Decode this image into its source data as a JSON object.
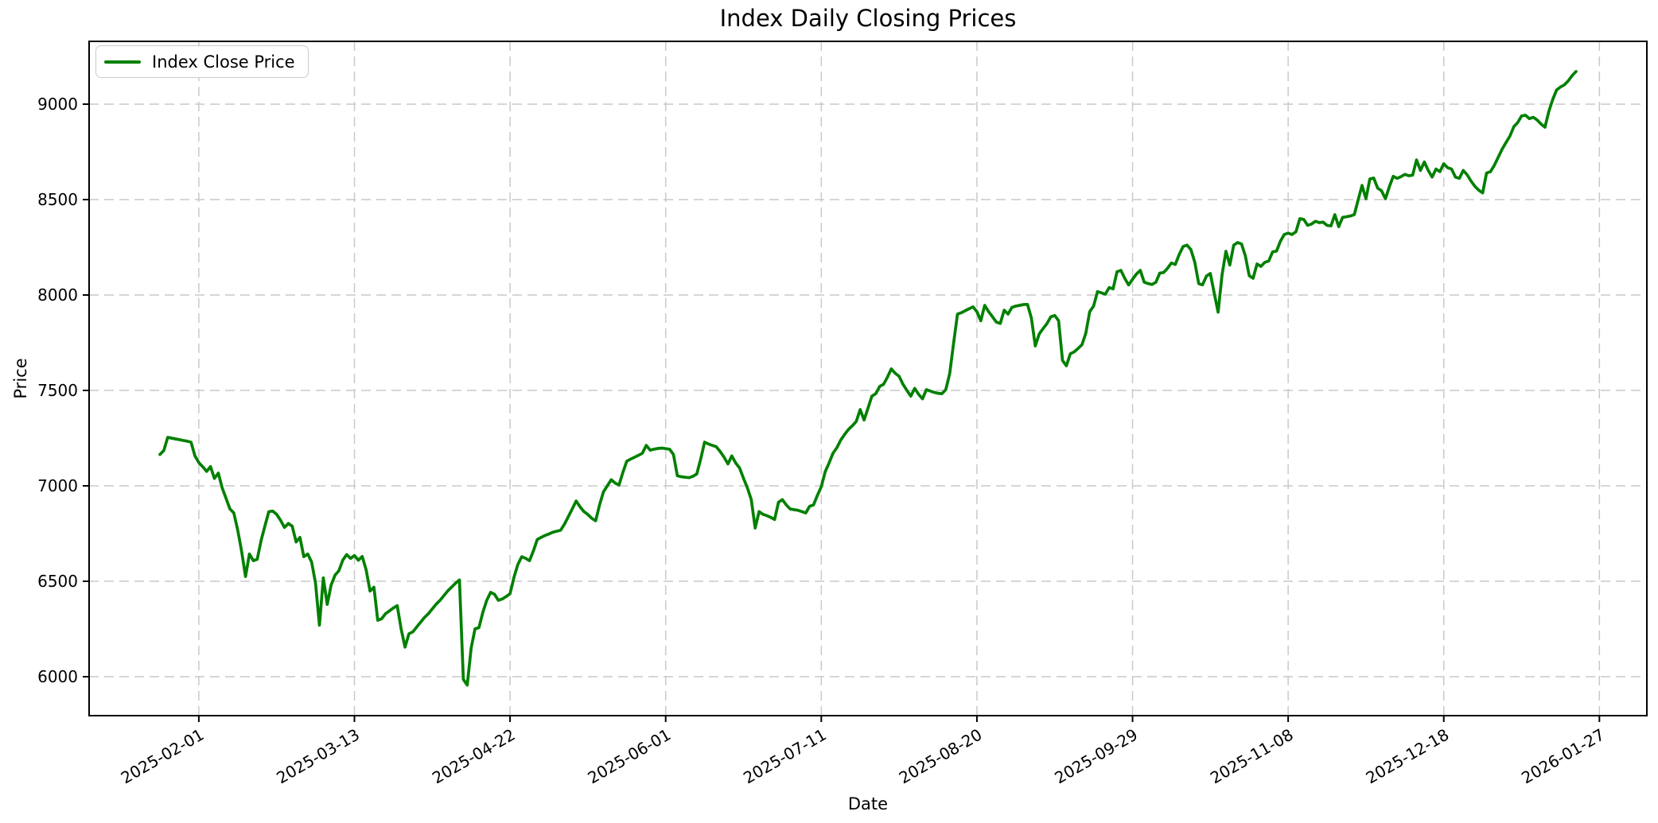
{
  "figure": {
    "title": "Index Daily Closing Prices"
  },
  "axes": {
    "xlabel": "Date",
    "ylabel": "Price"
  },
  "legend": {
    "items": [
      {
        "label": "Index Close Price",
        "color": "#008000"
      }
    ]
  },
  "colors": {
    "line": "#008000",
    "grid": "#c9c9c9",
    "spine": "#000000",
    "text": "#000000",
    "legend_border": "#cccccc"
  },
  "chart_data": {
    "type": "line",
    "title": "Index Daily Closing Prices",
    "xlabel": "Date",
    "ylabel": "Price",
    "grid": true,
    "grid_style": "dashed",
    "legend_position": "upper left",
    "frequency": "daily",
    "start_date": "2025-01-22",
    "end_date": "2026-01-21",
    "x_tick_labels": [
      "2025-02-01",
      "2025-03-13",
      "2025-04-22",
      "2025-06-01",
      "2025-07-11",
      "2025-08-20",
      "2025-09-29",
      "2025-11-08",
      "2025-12-18",
      "2026-01-27"
    ],
    "x_tick_indices": [
      10,
      50,
      90,
      130,
      170,
      210,
      250,
      290,
      330,
      370
    ],
    "xlim_indices": [
      -18.2,
      382.2
    ],
    "y_ticks": [
      6000,
      6500,
      7000,
      7500,
      8000,
      8500,
      9000
    ],
    "ylim": [
      5796,
      9329
    ],
    "series": [
      {
        "name": "Index Close Price",
        "color": "#008000",
        "values": [
          7164,
          7185,
          7254,
          7250,
          7246,
          7242,
          7238,
          7234,
          7229,
          7157,
          7122,
          7100,
          7076,
          7101,
          7039,
          7067,
          6990,
          6935,
          6879,
          6858,
          6768,
          6657,
          6525,
          6643,
          6608,
          6615,
          6712,
          6790,
          6865,
          6868,
          6851,
          6820,
          6782,
          6803,
          6789,
          6706,
          6730,
          6629,
          6643,
          6601,
          6490,
          6270,
          6518,
          6379,
          6480,
          6532,
          6555,
          6610,
          6640,
          6620,
          6635,
          6610,
          6630,
          6560,
          6449,
          6469,
          6296,
          6304,
          6330,
          6345,
          6360,
          6372,
          6250,
          6155,
          6225,
          6235,
          6260,
          6285,
          6310,
          6330,
          6355,
          6380,
          6400,
          6425,
          6450,
          6470,
          6490,
          6507,
          5986,
          5956,
          6150,
          6251,
          6257,
          6337,
          6400,
          6442,
          6432,
          6400,
          6407,
          6420,
          6435,
          6520,
          6588,
          6629,
          6620,
          6608,
          6660,
          6719,
          6730,
          6740,
          6748,
          6757,
          6762,
          6768,
          6800,
          6840,
          6880,
          6921,
          6890,
          6865,
          6850,
          6830,
          6817,
          6900,
          6969,
          7000,
          7032,
          7015,
          7004,
          7070,
          7129,
          7140,
          7150,
          7160,
          7171,
          7212,
          7187,
          7192,
          7196,
          7198,
          7195,
          7192,
          7164,
          7053,
          7048,
          7045,
          7043,
          7050,
          7062,
          7140,
          7229,
          7219,
          7212,
          7205,
          7180,
          7150,
          7115,
          7157,
          7120,
          7094,
          7040,
          6990,
          6928,
          6779,
          6865,
          6851,
          6844,
          6835,
          6824,
          6914,
          6928,
          6900,
          6879,
          6875,
          6872,
          6865,
          6858,
          6893,
          6900,
          6950,
          6995,
          7074,
          7120,
          7171,
          7200,
          7240,
          7270,
          7296,
          7315,
          7338,
          7400,
          7345,
          7407,
          7470,
          7483,
          7521,
          7532,
          7570,
          7613,
          7590,
          7574,
          7532,
          7500,
          7470,
          7511,
          7480,
          7456,
          7504,
          7497,
          7490,
          7485,
          7483,
          7504,
          7588,
          7747,
          7900,
          7907,
          7918,
          7928,
          7938,
          7913,
          7865,
          7946,
          7913,
          7886,
          7858,
          7851,
          7921,
          7900,
          7935,
          7942,
          7946,
          7950,
          7951,
          7879,
          7733,
          7796,
          7824,
          7850,
          7886,
          7893,
          7865,
          7657,
          7629,
          7692,
          7702,
          7720,
          7740,
          7800,
          7913,
          7942,
          8018,
          8011,
          8004,
          8039,
          8032,
          8122,
          8129,
          8088,
          8053,
          8082,
          8110,
          8129,
          8067,
          8060,
          8055,
          8067,
          8115,
          8118,
          8140,
          8168,
          8160,
          8213,
          8254,
          8261,
          8238,
          8171,
          8060,
          8053,
          8099,
          8113,
          8010,
          7910,
          8104,
          8229,
          8157,
          8261,
          8275,
          8268,
          8205,
          8101,
          8088,
          8163,
          8150,
          8171,
          8178,
          8226,
          8230,
          8282,
          8317,
          8324,
          8317,
          8331,
          8400,
          8396,
          8365,
          8372,
          8386,
          8379,
          8382,
          8365,
          8362,
          8421,
          8358,
          8407,
          8410,
          8414,
          8421,
          8500,
          8574,
          8504,
          8608,
          8613,
          8560,
          8546,
          8504,
          8567,
          8622,
          8611,
          8620,
          8632,
          8625,
          8628,
          8708,
          8653,
          8697,
          8653,
          8618,
          8660,
          8646,
          8688,
          8667,
          8660,
          8618,
          8611,
          8653,
          8630,
          8597,
          8569,
          8549,
          8535,
          8639,
          8646,
          8680,
          8722,
          8764,
          8799,
          8833,
          8882,
          8903,
          8938,
          8942,
          8924,
          8931,
          8917,
          8896,
          8879,
          8962,
          9025,
          9074,
          9090,
          9101,
          9122,
          9150,
          9171
        ]
      }
    ]
  }
}
